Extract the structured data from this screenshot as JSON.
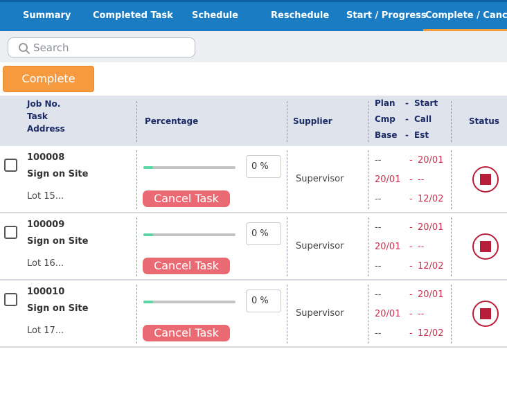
{
  "tabs": [
    {
      "label": "Summary",
      "active": false
    },
    {
      "label": "Completed Task",
      "active": false
    },
    {
      "label": "Schedule",
      "active": false
    },
    {
      "label": "Reschedule",
      "active": false
    },
    {
      "label": "Start / Progress",
      "active": false
    },
    {
      "label": "Complete / Cancel",
      "active": true
    }
  ],
  "search": {
    "placeholder": "Search",
    "value": ""
  },
  "actions": {
    "complete_label": "Complete"
  },
  "table": {
    "headers": {
      "job": [
        "Job No.",
        "Task",
        "Address"
      ],
      "percentage": "Percentage",
      "supplier": "Supplier",
      "dates": [
        "Plan",
        "Cmp",
        "Base"
      ],
      "dates_right": [
        "Start",
        "Call",
        "Est"
      ],
      "status": "Status"
    },
    "rows": [
      {
        "job_no": "100008",
        "task": "Sign on Site",
        "address": "Lot 15...",
        "progress": 0,
        "percent_text": "0 %",
        "cancel_label": "Cancel Task",
        "supplier": "Supervisor",
        "plan": "--",
        "start": "20/01",
        "cmp": "20/01",
        "call": "--",
        "base": "--",
        "est": "12/02",
        "checked": false,
        "status": "stopped"
      },
      {
        "job_no": "100009",
        "task": "Sign on Site",
        "address": "Lot 16...",
        "progress": 0,
        "percent_text": "0 %",
        "cancel_label": "Cancel Task",
        "supplier": "Supervisor",
        "plan": "--",
        "start": "20/01",
        "cmp": "20/01",
        "call": "--",
        "base": "--",
        "est": "12/02",
        "checked": false,
        "status": "stopped"
      },
      {
        "job_no": "100010",
        "task": "Sign on Site",
        "address": "Lot 17...",
        "progress": 0,
        "percent_text": "0 %",
        "cancel_label": "Cancel Task",
        "supplier": "Supervisor",
        "plan": "--",
        "start": "20/01",
        "cmp": "20/01",
        "call": "--",
        "base": "--",
        "est": "12/02",
        "checked": false,
        "status": "stopped"
      }
    ]
  },
  "colors": {
    "tab_bar": "#1a7dc4",
    "active_tab_underline": "#f39a3b",
    "complete_button": "#f59a3e",
    "cancel_button": "#ea6a73",
    "status_stop": "#b81e3a",
    "date_red": "#c8324e"
  }
}
